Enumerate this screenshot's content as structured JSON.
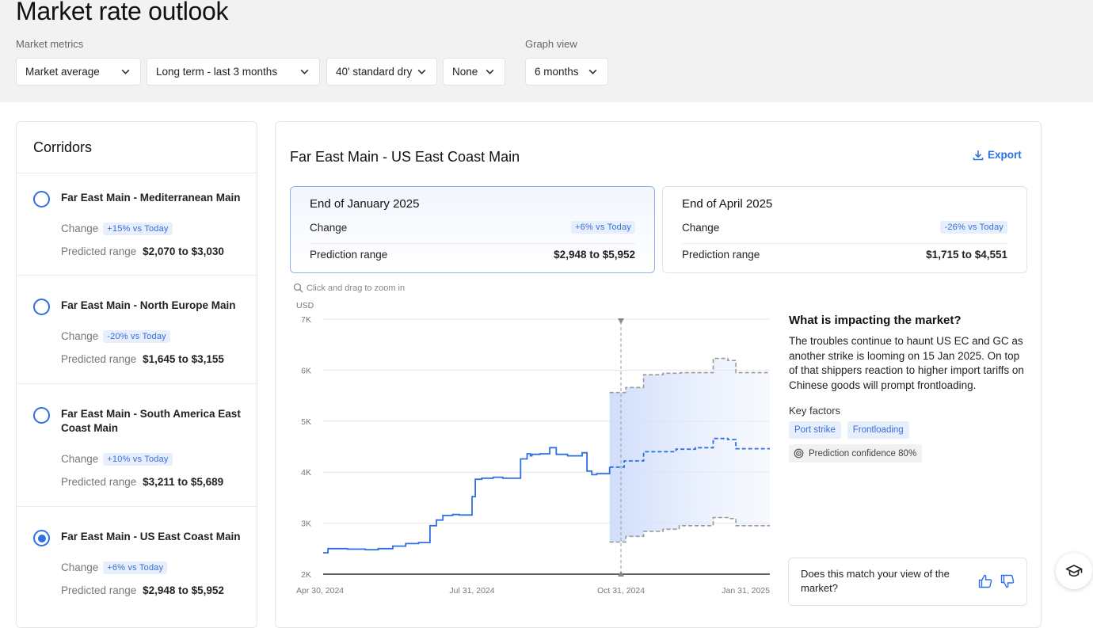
{
  "page": {
    "title": "Market rate outlook"
  },
  "filters": {
    "market_metrics_label": "Market metrics",
    "graph_view_label": "Graph view",
    "metric": "Market average",
    "term": "Long term - last 3 months",
    "container": "40' standard dry",
    "extra": "None",
    "graph_range": "6 months"
  },
  "corridors": {
    "title": "Corridors",
    "change_label": "Change",
    "range_label": "Predicted range",
    "items": [
      {
        "name": "Far East Main - Mediterranean Main",
        "change": "+15% vs Today",
        "range": "$2,070 to $3,030",
        "selected": false
      },
      {
        "name": "Far East Main - North Europe Main",
        "change": "-20% vs Today",
        "range": "$1,645 to $3,155",
        "selected": false
      },
      {
        "name": "Far East Main - South America East Coast Main",
        "change": "+10% vs Today",
        "range": "$3,211 to $5,689",
        "selected": false
      },
      {
        "name": "Far East Main - US East Coast Main",
        "change": "+6% vs Today",
        "range": "$2,948 to $5,952",
        "selected": true
      }
    ]
  },
  "detail": {
    "title": "Far East Main  -  US East Coast Main",
    "export_label": "Export",
    "cards": [
      {
        "title": "End of January 2025",
        "change_label": "Change",
        "change": "+6% vs Today",
        "range_label": "Prediction range",
        "range": "$2,948 to $5,952"
      },
      {
        "title": "End of April 2025",
        "change_label": "Change",
        "change": "-26% vs Today",
        "range_label": "Prediction range",
        "range": "$1,715 to $4,551"
      }
    ],
    "zoom_hint": "Click and drag to zoom in"
  },
  "impact": {
    "title": "What is impacting the market?",
    "text": "The troubles continue to haunt US EC and GC as another strike is looming on 15 Jan 2025. On top of that shippers reaction to higher import tariffs on Chinese goods will prompt frontloading.",
    "key_factors_label": "Key factors",
    "factors": [
      "Port strike",
      "Frontloading"
    ],
    "confidence": "Prediction confidence 80%"
  },
  "feedback": {
    "question": "Does this match your view of the market?"
  },
  "colors": {
    "accent": "#2f6fe4",
    "badge_bg": "#e7eefc",
    "band": "#dbe6fd"
  },
  "chart_data": {
    "type": "line",
    "ylabel": "USD",
    "ylim": [
      2000,
      7000
    ],
    "y_ticks": [
      {
        "v": 7000,
        "t": "7K"
      },
      {
        "v": 6000,
        "t": "6K"
      },
      {
        "v": 5000,
        "t": "5K"
      },
      {
        "v": 4000,
        "t": "4K"
      },
      {
        "v": 3000,
        "t": "3K"
      },
      {
        "v": 2000,
        "t": "2K"
      }
    ],
    "x_range": [
      "2024-04-30",
      "2025-01-31"
    ],
    "x_ticks": [
      {
        "v": "2024-04-30",
        "t": "Apr 30, 2024"
      },
      {
        "v": "2024-07-31",
        "t": "Jul 31, 2024"
      },
      {
        "v": "2024-10-31",
        "t": "Oct 31, 2024"
      },
      {
        "v": "2025-01-31",
        "t": "Jan 31, 2025"
      }
    ],
    "today": "2024-10-31",
    "series": [
      {
        "style": "step",
        "points": [
          [
            "2024-04-30",
            2420
          ],
          [
            "2024-05-03",
            2500
          ],
          [
            "2024-05-15",
            2490
          ],
          [
            "2024-05-26",
            2480
          ],
          [
            "2024-06-03",
            2500
          ],
          [
            "2024-06-12",
            2550
          ],
          [
            "2024-06-20",
            2600
          ],
          [
            "2024-06-28",
            2620
          ],
          [
            "2024-07-05",
            2950
          ],
          [
            "2024-07-09",
            3060
          ],
          [
            "2024-07-13",
            3150
          ],
          [
            "2024-07-19",
            3170
          ],
          [
            "2024-07-23",
            3160
          ],
          [
            "2024-07-31",
            3520
          ],
          [
            "2024-08-02",
            3860
          ],
          [
            "2024-08-06",
            3880
          ],
          [
            "2024-08-13",
            3900
          ],
          [
            "2024-08-19",
            3880
          ],
          [
            "2024-08-30",
            4260
          ],
          [
            "2024-09-03",
            4360
          ],
          [
            "2024-09-05",
            4320
          ],
          [
            "2024-09-06",
            4350
          ],
          [
            "2024-09-11",
            4360
          ],
          [
            "2024-09-17",
            4480
          ],
          [
            "2024-09-21",
            4350
          ],
          [
            "2024-09-28",
            4320
          ],
          [
            "2024-10-07",
            4380
          ],
          [
            "2024-10-10",
            4020
          ],
          [
            "2024-10-13",
            3950
          ],
          [
            "2024-10-16",
            3970
          ],
          [
            "2024-10-24",
            4100
          ]
        ]
      },
      {
        "style": "dashed-step",
        "points": [
          [
            "2024-10-24",
            4100
          ],
          [
            "2024-11-02",
            4220
          ],
          [
            "2024-11-14",
            4400
          ],
          [
            "2024-11-25",
            4400
          ],
          [
            "2024-12-04",
            4450
          ],
          [
            "2024-12-16",
            4480
          ],
          [
            "2024-12-27",
            4660
          ],
          [
            "2025-01-05",
            4640
          ],
          [
            "2025-01-10",
            4460
          ],
          [
            "2025-01-31",
            4460
          ]
        ]
      },
      {
        "style": "dashed-step",
        "points": [
          [
            "2024-10-24",
            5560
          ],
          [
            "2024-11-03",
            5660
          ],
          [
            "2024-11-14",
            5910
          ],
          [
            "2024-11-26",
            5940
          ],
          [
            "2024-12-07",
            5950
          ],
          [
            "2024-12-27",
            6230
          ],
          [
            "2025-01-05",
            6190
          ],
          [
            "2025-01-10",
            5950
          ],
          [
            "2025-01-31",
            5950
          ]
        ]
      },
      {
        "style": "dashed-step",
        "points": [
          [
            "2024-10-24",
            2630
          ],
          [
            "2024-11-03",
            2740
          ],
          [
            "2024-11-14",
            2840
          ],
          [
            "2024-11-26",
            2880
          ],
          [
            "2024-12-06",
            2950
          ],
          [
            "2024-12-27",
            3110
          ],
          [
            "2025-01-05",
            3090
          ],
          [
            "2025-01-10",
            2950
          ],
          [
            "2025-01-31",
            2950
          ]
        ]
      }
    ]
  }
}
